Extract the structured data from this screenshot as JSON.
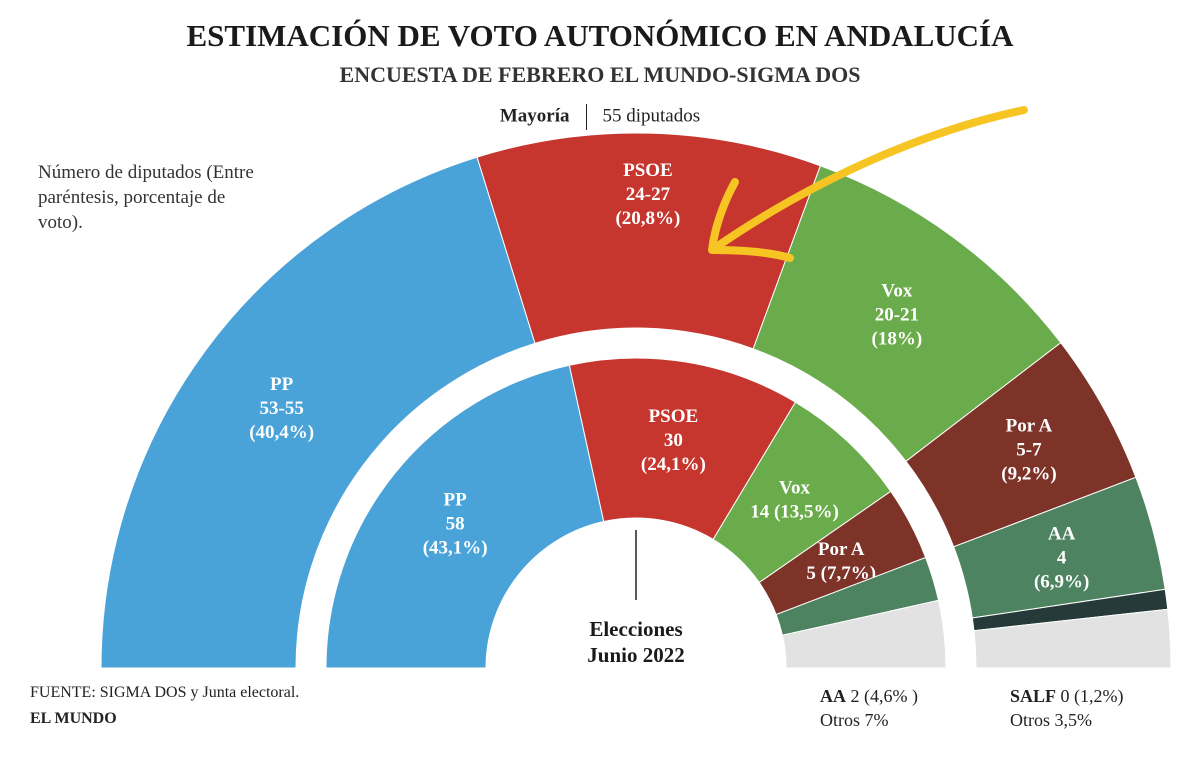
{
  "title": "ESTIMACIÓN DE VOTO AUTONÓMICO EN ANDALUCÍA",
  "subtitle": "ENCUESTA DE FEBRERO EL MUNDO-SIGMA DOS",
  "majority": {
    "label": "Mayoría",
    "value": "55 diputados"
  },
  "note": "Número de diputados (Entre paréntesis, porcentaje de voto).",
  "center_label": {
    "line1": "Elecciones",
    "line2": "Junio 2022"
  },
  "source": "FUENTE:  SIGMA DOS y Junta electoral.",
  "brand": "EL MUNDO",
  "colors": {
    "PP": "#4aa3d8",
    "PSOE": "#c6362f",
    "Vox": "#6aab4b",
    "PorA": "#7d3328",
    "AA": "#4d8360",
    "SALF": "#263a3a",
    "Otros": "#e2e2e2"
  },
  "chart_data": [
    {
      "type": "pie",
      "name": "Encuesta febrero (estimación)",
      "series": [
        {
          "party": "PP",
          "label": "PP",
          "seats": "53-55",
          "pct": "(40,4%)",
          "pct_value": 40.4,
          "color": "#4aa3d8"
        },
        {
          "party": "PSOE",
          "label": "PSOE",
          "seats": "24-27",
          "pct": "(20,8%)",
          "pct_value": 20.8,
          "color": "#c6362f"
        },
        {
          "party": "Vox",
          "label": "Vox",
          "seats": "20-21",
          "pct": "(18%)",
          "pct_value": 18.0,
          "color": "#6aab4b"
        },
        {
          "party": "PorA",
          "label": "Por A",
          "seats": "5-7",
          "pct": "(9,2%)",
          "pct_value": 9.2,
          "color": "#7d3328"
        },
        {
          "party": "AA",
          "label": "AA",
          "seats": "4",
          "pct": "(6,9%)",
          "pct_value": 6.9,
          "color": "#4d8360"
        },
        {
          "party": "SALF",
          "label": "SALF",
          "seats": "0",
          "pct": "(1,2%)",
          "pct_value": 1.2,
          "color": "#263a3a"
        },
        {
          "party": "Otros",
          "label": "Otros",
          "seats": "",
          "pct": "3,5%",
          "pct_value": 3.5,
          "color": "#e2e2e2"
        }
      ]
    },
    {
      "type": "pie",
      "name": "Elecciones Junio 2022",
      "series": [
        {
          "party": "PP",
          "label": "PP",
          "seats": "58",
          "pct": "(43,1%)",
          "pct_value": 43.1,
          "color": "#4aa3d8"
        },
        {
          "party": "PSOE",
          "label": "PSOE",
          "seats": "30",
          "pct": "(24,1%)",
          "pct_value": 24.1,
          "color": "#c6362f"
        },
        {
          "party": "Vox",
          "label": "Vox",
          "seats": "14",
          "pct": "(13,5%)",
          "pct_value": 13.5,
          "color": "#6aab4b"
        },
        {
          "party": "PorA",
          "label": "Por A",
          "seats": "5",
          "pct": "(7,7%)",
          "pct_value": 7.7,
          "color": "#7d3328"
        },
        {
          "party": "AA",
          "label": "AA",
          "seats": "2",
          "pct": "(4,6%)",
          "pct_value": 4.6,
          "color": "#4d8360"
        },
        {
          "party": "Otros",
          "label": "Otros",
          "seats": "",
          "pct": "7%",
          "pct_value": 7.0,
          "color": "#e2e2e2"
        }
      ]
    }
  ],
  "legend_2022": {
    "party": "AA",
    "value": "2 (4,6% )",
    "otros": "Otros 7%"
  },
  "legend_2026": {
    "party": "SALF",
    "value": "0 (1,2%)",
    "otros": "Otros 3,5%"
  }
}
